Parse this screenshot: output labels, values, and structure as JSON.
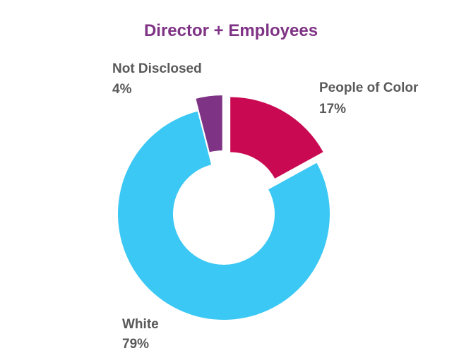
{
  "chart_data": {
    "type": "pie",
    "subtype": "donut",
    "title": "Director + Employees",
    "title_color": "#7f3385",
    "slices": [
      {
        "label": "People of Color",
        "value": 17,
        "value_label": "17%",
        "color": "#c90a52"
      },
      {
        "label": "White",
        "value": 79,
        "value_label": "79%",
        "color": "#3cc8f4"
      },
      {
        "label": "Not Disclosed",
        "value": 4,
        "value_label": "4%",
        "color": "#7f3385"
      }
    ],
    "legend": "none",
    "exploded": true
  }
}
